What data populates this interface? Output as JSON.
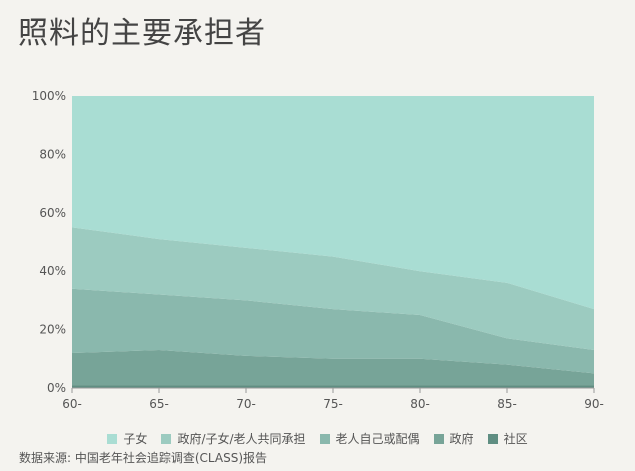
{
  "title": "照料的主要承担者",
  "source": "数据来源: 中国老年社会追踪调查(CLASS)报告",
  "chart_data": {
    "type": "area",
    "stacked": true,
    "percent": true,
    "categories": [
      "60-",
      "65-",
      "70-",
      "75-",
      "80-",
      "85-",
      "90-"
    ],
    "y_ticks": [
      "0%",
      "20%",
      "40%",
      "60%",
      "80%",
      "100%"
    ],
    "ylim": [
      0,
      100
    ],
    "legend_position": "bottom",
    "series": [
      {
        "name": "子女",
        "color": "#a9ddd3",
        "values": [
          45,
          49,
          52,
          55,
          60,
          64,
          73
        ]
      },
      {
        "name": "政府/子女/老人共同承担",
        "color": "#9ccbc0",
        "values": [
          21,
          19,
          18,
          18,
          15,
          19,
          14
        ]
      },
      {
        "name": "老人自己或配偶",
        "color": "#8ab8ad",
        "values": [
          22,
          19,
          19,
          17,
          15,
          9,
          8
        ]
      },
      {
        "name": "政府",
        "color": "#77a498",
        "values": [
          11,
          12,
          10,
          9,
          9,
          7,
          4
        ]
      },
      {
        "name": "社区",
        "color": "#5f8e82",
        "values": [
          1,
          1,
          1,
          1,
          1,
          1,
          1
        ]
      }
    ]
  }
}
